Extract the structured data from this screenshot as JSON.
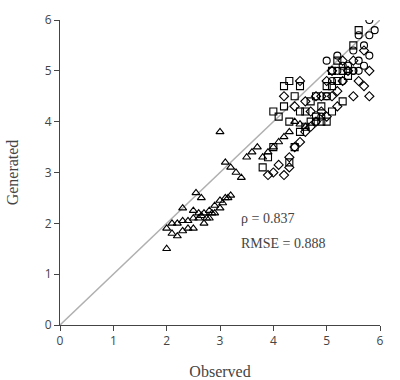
{
  "chart_data": {
    "type": "scatter",
    "xlabel": "Observed",
    "ylabel": "Generated",
    "xlim": [
      0,
      6
    ],
    "ylim": [
      0,
      6
    ],
    "xticks": [
      0,
      1,
      2,
      3,
      4,
      5,
      6
    ],
    "yticks": [
      0,
      1,
      2,
      3,
      4,
      5,
      6
    ],
    "grid": false,
    "annotations": [
      {
        "text": "ρ = 0.837",
        "x": 3.35,
        "y": 2.1
      },
      {
        "text": "RMSE = 0.888",
        "x": 3.35,
        "y": 1.6
      }
    ],
    "series": [
      {
        "type": "line",
        "color": "#b0b0b0",
        "x": [
          0,
          6
        ],
        "values": [
          0,
          6
        ]
      },
      {
        "type": "scatter",
        "marker": "triangle",
        "color": "black",
        "x": [
          2.0,
          2.1,
          2.2,
          2.2,
          2.3,
          2.3,
          2.4,
          2.4,
          2.5,
          2.5,
          2.5,
          2.6,
          2.6,
          2.65,
          2.7,
          2.7,
          2.75,
          2.8,
          2.8,
          2.85,
          2.9,
          2.9,
          3.0,
          3.0,
          3.05,
          3.1,
          3.15,
          3.2,
          3.0,
          3.1,
          3.2,
          3.3,
          3.5,
          3.6,
          3.7,
          4.0,
          4.1,
          4.2,
          4.3,
          4.4,
          4.5,
          4.6,
          2.55,
          2.65,
          3.4,
          2.0,
          2.1,
          2.3,
          3.8,
          3.9
        ],
        "values": [
          1.5,
          1.8,
          1.75,
          2.0,
          1.85,
          2.05,
          1.9,
          2.05,
          1.9,
          2.1,
          2.25,
          2.1,
          2.2,
          2.15,
          2.0,
          2.2,
          2.1,
          2.1,
          2.25,
          2.2,
          2.2,
          2.35,
          2.3,
          2.45,
          2.4,
          2.5,
          2.5,
          2.55,
          3.8,
          3.2,
          3.1,
          3.0,
          3.3,
          3.4,
          3.5,
          3.5,
          3.6,
          3.7,
          3.8,
          4.0,
          3.95,
          3.9,
          2.6,
          2.5,
          2.9,
          1.9,
          2.0,
          2.3,
          3.3,
          3.4
        ]
      },
      {
        "type": "scatter",
        "marker": "square",
        "color": "black",
        "x": [
          3.8,
          3.9,
          4.0,
          4.0,
          4.1,
          4.2,
          4.3,
          4.4,
          4.5,
          4.5,
          4.6,
          4.7,
          4.8,
          4.9,
          5.0,
          5.0,
          5.1,
          5.1,
          5.2,
          5.2,
          5.3,
          5.4,
          5.5,
          5.6,
          4.3,
          4.4,
          4.5,
          4.6,
          4.7,
          4.8,
          4.2,
          4.3,
          4.9,
          5.0,
          5.1,
          5.3
        ],
        "values": [
          3.1,
          3.3,
          3.5,
          4.2,
          4.1,
          4.3,
          3.2,
          3.5,
          3.8,
          4.7,
          4.2,
          4.0,
          4.1,
          4.0,
          4.0,
          4.7,
          4.2,
          5.0,
          4.8,
          5.2,
          4.4,
          4.9,
          5.5,
          5.8,
          4.0,
          4.5,
          4.2,
          3.9,
          4.4,
          4.5,
          4.7,
          4.8,
          4.3,
          4.5,
          4.7,
          5.0
        ]
      },
      {
        "type": "scatter",
        "marker": "diamond",
        "color": "black",
        "x": [
          3.9,
          4.0,
          4.1,
          4.2,
          4.3,
          4.3,
          4.4,
          4.5,
          4.6,
          4.6,
          4.7,
          4.8,
          4.8,
          4.9,
          5.0,
          5.0,
          5.1,
          5.2,
          5.3,
          5.4,
          5.5,
          5.5,
          5.6,
          5.7,
          5.7,
          5.8,
          5.8,
          4.2,
          4.4,
          4.5,
          4.7,
          4.9,
          5.1,
          5.2,
          5.3
        ],
        "values": [
          2.95,
          3.0,
          3.15,
          2.95,
          3.1,
          3.3,
          3.5,
          3.6,
          3.8,
          4.4,
          4.2,
          4.0,
          4.5,
          4.2,
          4.1,
          4.8,
          4.5,
          4.6,
          4.8,
          5.0,
          4.5,
          5.2,
          4.8,
          4.7,
          5.4,
          4.5,
          5.0,
          4.5,
          4.3,
          4.8,
          3.9,
          4.5,
          5.0,
          4.3,
          5.2
        ]
      },
      {
        "type": "scatter",
        "marker": "circle",
        "color": "black",
        "x": [
          4.9,
          5.0,
          5.1,
          5.2,
          5.3,
          5.4,
          5.5,
          5.5,
          5.6,
          5.6,
          5.7,
          5.8,
          5.8,
          5.9,
          5.5,
          5.0,
          5.1,
          5.2,
          4.8,
          5.3,
          5.4,
          5.6,
          5.7,
          5.8
        ],
        "values": [
          4.1,
          4.5,
          4.8,
          5.0,
          5.1,
          5.1,
          5.0,
          5.4,
          5.2,
          5.7,
          5.5,
          5.7,
          6.0,
          5.8,
          5.0,
          5.2,
          5.0,
          5.3,
          4.0,
          4.8,
          5.0,
          5.0,
          5.1,
          5.3
        ]
      }
    ]
  }
}
